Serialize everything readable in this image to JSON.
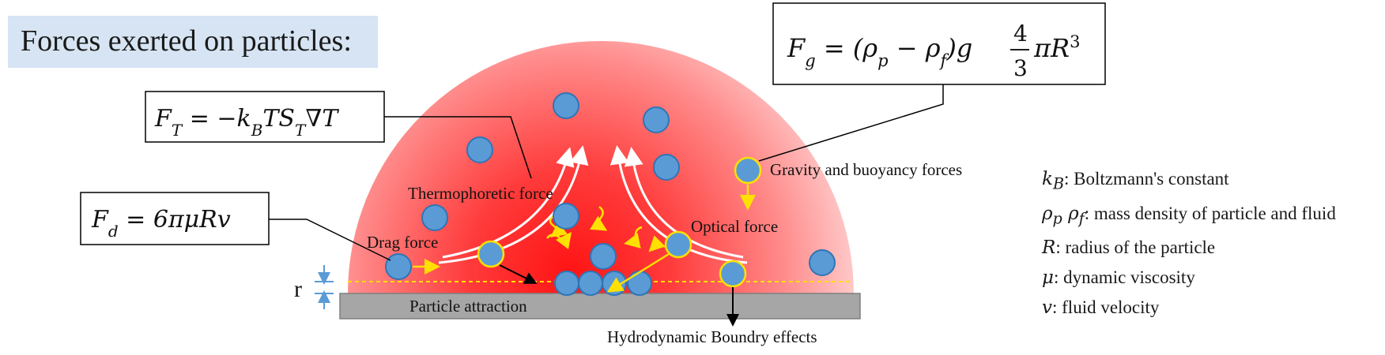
{
  "title": "Forces exerted on particles:",
  "equations": {
    "thermophoretic": "F_T = −k_B T S_T ∇T",
    "drag": "F_d = 6πμRv",
    "gravity": "F_g = (ρ_p − ρ_f) g (4/3) π R³"
  },
  "labels": {
    "thermophoretic_force": "Thermophoretic force",
    "drag_force": "Drag force",
    "optical_force": "Optical force",
    "gravity_buoyancy": "Gravity and buoyancy forces",
    "particle_attraction": "Particle attraction",
    "hydrodynamic": "Hydrodynamic Boundry effects",
    "r": "r"
  },
  "legend": [
    {
      "symbol": "k_B",
      "text": ": Boltzmann's constant"
    },
    {
      "symbol": "ρ_p ρ_f",
      "text": ": mass density of particle and fluid"
    },
    {
      "symbol": "R",
      "text": ": radius of the particle"
    },
    {
      "symbol": "μ",
      "text": ": dynamic viscosity"
    },
    {
      "symbol": "v",
      "text": ": fluid velocity"
    }
  ],
  "colors": {
    "particle_fill": "#5b9bd5",
    "particle_stroke": "#2e75b6",
    "highlight": "#ffe000",
    "substrate": "#a6a6a6",
    "heat_core": "#ff1e1e",
    "title_bg": "#d6e4f3"
  }
}
